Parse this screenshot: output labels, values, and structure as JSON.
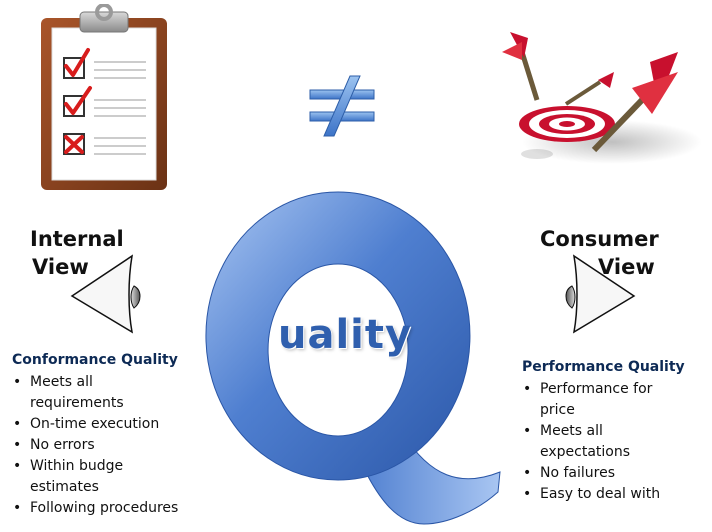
{
  "left": {
    "title_line1": "Internal",
    "title_line2": "View",
    "heading": "Conformance Quality",
    "items": [
      "Meets all requirements",
      "On-time execution",
      "No errors",
      "Within budge estimates",
      "Following procedures"
    ]
  },
  "right": {
    "title_line1": "Consumer",
    "title_line2": "View",
    "heading": "Performance Quality",
    "items": [
      "Performance for price",
      "Meets all expectations",
      "No failures",
      "Easy to deal with"
    ]
  },
  "center": {
    "big_letter": "Q",
    "word": "uality",
    "symbol": "≠"
  },
  "colors": {
    "q_blue": "#3d6fc4",
    "clipboard_brown": "#8a4320",
    "check_red": "#d81c1c",
    "target_red": "#c8102e"
  }
}
